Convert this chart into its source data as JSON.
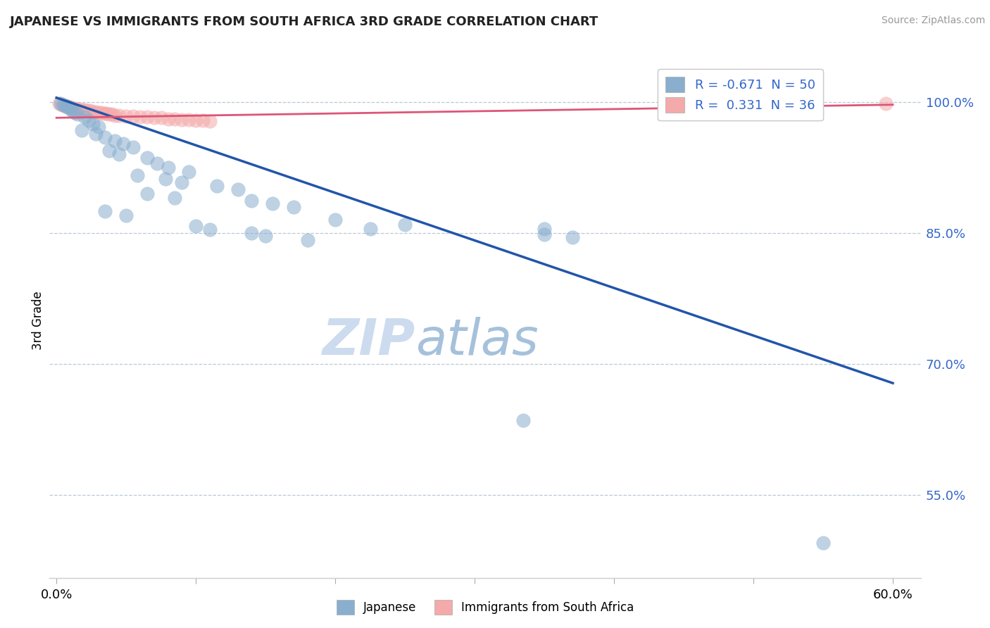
{
  "title": "JAPANESE VS IMMIGRANTS FROM SOUTH AFRICA 3RD GRADE CORRELATION CHART",
  "source": "Source: ZipAtlas.com",
  "ylabel": "3rd Grade",
  "y_ticks": [
    0.55,
    0.7,
    0.85,
    1.0
  ],
  "y_tick_labels": [
    "55.0%",
    "70.0%",
    "85.0%",
    "100.0%"
  ],
  "xlim": [
    -0.5,
    62.0
  ],
  "ylim": [
    0.455,
    1.045
  ],
  "legend1_label": "R = -0.671  N = 50",
  "legend2_label": "R =  0.331  N = 36",
  "legend_bottom1": "Japanese",
  "legend_bottom2": "Immigrants from South Africa",
  "watermark_zip": "ZIP",
  "watermark_atlas": "atlas",
  "blue_color": "#89AECE",
  "pink_color": "#F4AAAA",
  "blue_line_color": "#2255AA",
  "pink_line_color": "#DD5577",
  "blue_scatter": [
    [
      0.3,
      0.998
    ],
    [
      0.5,
      0.997
    ],
    [
      0.6,
      0.996
    ],
    [
      0.7,
      0.995
    ],
    [
      0.8,
      0.994
    ],
    [
      1.0,
      0.993
    ],
    [
      1.1,
      0.99
    ],
    [
      1.3,
      0.988
    ],
    [
      1.5,
      0.986
    ],
    [
      2.0,
      0.983
    ],
    [
      2.3,
      0.979
    ],
    [
      2.6,
      0.975
    ],
    [
      3.0,
      0.972
    ],
    [
      1.8,
      0.968
    ],
    [
      2.8,
      0.964
    ],
    [
      3.5,
      0.96
    ],
    [
      4.2,
      0.956
    ],
    [
      4.8,
      0.952
    ],
    [
      5.5,
      0.948
    ],
    [
      3.8,
      0.944
    ],
    [
      4.5,
      0.94
    ],
    [
      6.5,
      0.936
    ],
    [
      7.2,
      0.93
    ],
    [
      8.0,
      0.925
    ],
    [
      9.5,
      0.92
    ],
    [
      5.8,
      0.916
    ],
    [
      7.8,
      0.912
    ],
    [
      9.0,
      0.908
    ],
    [
      11.5,
      0.904
    ],
    [
      13.0,
      0.9
    ],
    [
      6.5,
      0.895
    ],
    [
      8.5,
      0.89
    ],
    [
      14.0,
      0.887
    ],
    [
      15.5,
      0.884
    ],
    [
      17.0,
      0.88
    ],
    [
      3.5,
      0.875
    ],
    [
      5.0,
      0.87
    ],
    [
      20.0,
      0.865
    ],
    [
      10.0,
      0.858
    ],
    [
      11.0,
      0.854
    ],
    [
      22.5,
      0.855
    ],
    [
      14.0,
      0.85
    ],
    [
      15.0,
      0.847
    ],
    [
      25.0,
      0.86
    ],
    [
      18.0,
      0.842
    ],
    [
      35.0,
      0.855
    ],
    [
      35.0,
      0.848
    ],
    [
      37.0,
      0.845
    ],
    [
      33.5,
      0.635
    ],
    [
      55.0,
      0.495
    ]
  ],
  "pink_scatter": [
    [
      0.2,
      0.998
    ],
    [
      0.4,
      0.997
    ],
    [
      0.6,
      0.996
    ],
    [
      0.8,
      0.995
    ],
    [
      1.0,
      0.994
    ],
    [
      1.2,
      0.993
    ],
    [
      1.4,
      0.993
    ],
    [
      1.6,
      0.992
    ],
    [
      1.8,
      0.991
    ],
    [
      2.0,
      0.991
    ],
    [
      2.2,
      0.99
    ],
    [
      2.4,
      0.99
    ],
    [
      2.6,
      0.989
    ],
    [
      2.8,
      0.989
    ],
    [
      3.0,
      0.988
    ],
    [
      3.2,
      0.988
    ],
    [
      3.4,
      0.987
    ],
    [
      3.6,
      0.987
    ],
    [
      3.8,
      0.986
    ],
    [
      4.0,
      0.986
    ],
    [
      4.2,
      0.985
    ],
    [
      4.5,
      0.985
    ],
    [
      5.0,
      0.984
    ],
    [
      5.5,
      0.984
    ],
    [
      6.0,
      0.983
    ],
    [
      6.5,
      0.983
    ],
    [
      7.0,
      0.982
    ],
    [
      7.5,
      0.982
    ],
    [
      8.0,
      0.981
    ],
    [
      8.5,
      0.981
    ],
    [
      9.0,
      0.98
    ],
    [
      9.5,
      0.98
    ],
    [
      10.0,
      0.979
    ],
    [
      10.5,
      0.979
    ],
    [
      11.0,
      0.978
    ],
    [
      59.5,
      0.998
    ]
  ],
  "blue_line": [
    [
      0.0,
      1.005
    ],
    [
      60.0,
      0.678
    ]
  ],
  "pink_line": [
    [
      0.0,
      0.982
    ],
    [
      60.0,
      0.997
    ]
  ]
}
